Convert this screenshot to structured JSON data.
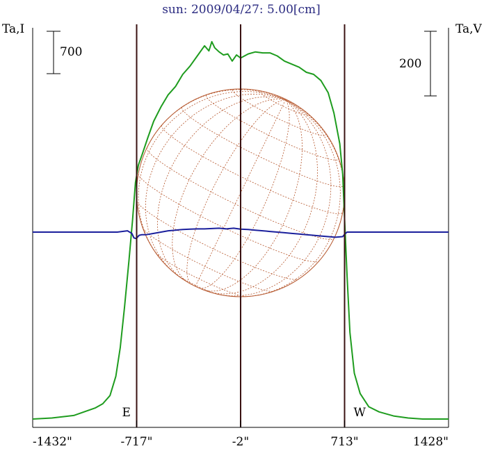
{
  "chart_data": {
    "type": "line",
    "title": "sun: 2009/04/27: 5.00[cm]",
    "left_axis_label": "Ta,I",
    "right_axis_label": "Ta,V",
    "left_scale_bar_label": "700",
    "left_scale_bar_value": 700,
    "right_scale_bar_label": "200",
    "right_scale_bar_value": 200,
    "x_tick_labels": [
      "-1432\"",
      "-717\"",
      "-2\"",
      "713\"",
      "1428\""
    ],
    "x_ticks": [
      -1432,
      -717,
      -2,
      713,
      1428
    ],
    "xlim": [
      -1432,
      1428
    ],
    "limb_markers": [
      {
        "label": "E",
        "x": -717
      },
      {
        "label": "W",
        "x": 713
      }
    ],
    "center_marker_x": -2,
    "solar_disk_radius_arcsec": 715,
    "grid": false,
    "colors": {
      "intensity": "#1e9c1e",
      "polarization": "#1a1f9c",
      "disk": "#b5562c",
      "markers": "#3a1212",
      "title": "#2a2a80"
    },
    "series": [
      {
        "key": "intensity",
        "x": [
          -1432,
          -1300,
          -1150,
          -1000,
          -950,
          -900,
          -860,
          -830,
          -800,
          -770,
          -745,
          -725,
          -705,
          -680,
          -640,
          -600,
          -550,
          -500,
          -450,
          -400,
          -350,
          -300,
          -250,
          -220,
          -200,
          -180,
          -150,
          -120,
          -90,
          -60,
          -30,
          -2,
          50,
          100,
          150,
          200,
          250,
          300,
          350,
          400,
          450,
          500,
          550,
          600,
          640,
          680,
          700,
          715,
          730,
          750,
          780,
          820,
          880,
          950,
          1050,
          1150,
          1250,
          1350,
          1428
        ],
        "values": [
          0,
          10,
          35,
          110,
          150,
          230,
          420,
          700,
          1100,
          1550,
          1950,
          2320,
          2490,
          2590,
          2760,
          2920,
          3060,
          3180,
          3260,
          3380,
          3460,
          3560,
          3660,
          3610,
          3700,
          3640,
          3600,
          3570,
          3580,
          3510,
          3570,
          3540,
          3580,
          3600,
          3590,
          3590,
          3560,
          3510,
          3480,
          3450,
          3400,
          3380,
          3320,
          3200,
          3000,
          2700,
          2400,
          1900,
          1400,
          850,
          450,
          250,
          120,
          70,
          30,
          10,
          0,
          0,
          0
        ]
      },
      {
        "key": "polarization",
        "x": [
          -1432,
          -1200,
          -1000,
          -850,
          -780,
          -750,
          -735,
          -720,
          -700,
          -680,
          -650,
          -600,
          -550,
          -500,
          -450,
          -400,
          -350,
          -300,
          -250,
          -200,
          -150,
          -100,
          -50,
          -2,
          50,
          100,
          150,
          200,
          250,
          300,
          350,
          400,
          450,
          500,
          550,
          600,
          650,
          700,
          715,
          730,
          760,
          800,
          900,
          1050,
          1200,
          1350,
          1428
        ],
        "values": [
          0,
          0,
          0,
          0,
          4,
          -4,
          -18,
          -20,
          -10,
          -8,
          -8,
          -4,
          0,
          4,
          6,
          8,
          9,
          10,
          10,
          11,
          12,
          10,
          12,
          9,
          8,
          6,
          4,
          2,
          0,
          -2,
          -4,
          -6,
          -8,
          -10,
          -12,
          -14,
          -16,
          -14,
          -6,
          0,
          0,
          0,
          0,
          0,
          0,
          0,
          0
        ]
      }
    ]
  }
}
